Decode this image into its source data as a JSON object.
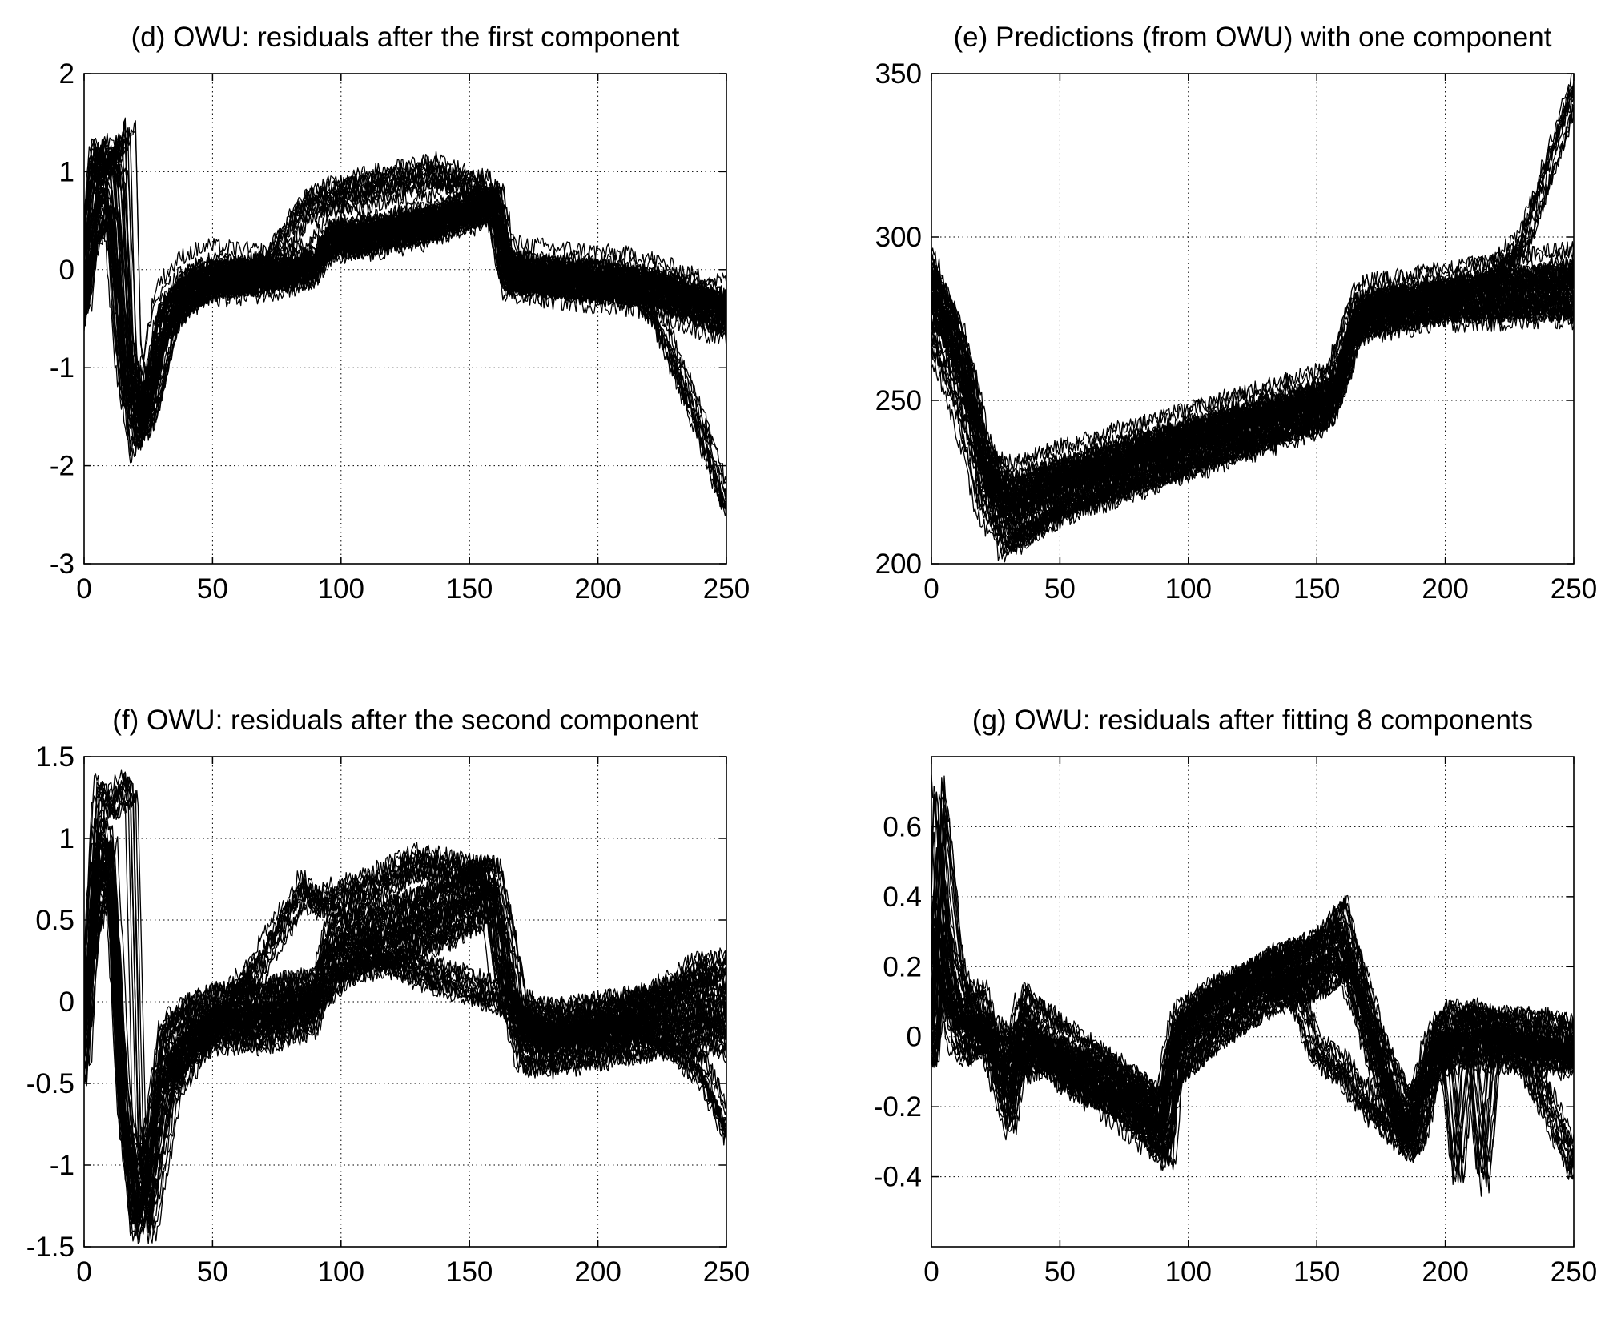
{
  "chart_data": [
    {
      "type": "line",
      "title": "(d) OWU: residuals after the first component",
      "xlabel": "",
      "ylabel": "",
      "xlim": [
        0,
        250
      ],
      "ylim": [
        -3,
        2
      ],
      "xticks": [
        0,
        50,
        100,
        150,
        200,
        250
      ],
      "yticks": [
        -3,
        -2,
        -1,
        0,
        1,
        2
      ],
      "xtick_labels": [
        "0",
        "50",
        "100",
        "150",
        "200",
        "250"
      ],
      "ytick_labels": [
        "-3",
        "-2",
        "-1",
        "0",
        "1",
        "2"
      ],
      "grid": true,
      "line_color": "#000000",
      "series_count": 60,
      "series": [
        {
          "x": [
            0,
            5,
            10,
            15,
            20,
            25,
            30,
            40,
            50,
            70,
            90,
            95,
            110,
            130,
            150,
            155,
            160,
            165,
            180,
            200,
            220,
            240,
            250
          ],
          "values": [
            -0.3,
            0.6,
            0.8,
            -0.9,
            -1.6,
            -1.2,
            -0.5,
            -0.2,
            -0.1,
            -0.05,
            0.05,
            0.3,
            0.35,
            0.45,
            0.6,
            0.65,
            0.65,
            0.0,
            -0.05,
            -0.1,
            -0.15,
            -0.3,
            -0.4
          ]
        },
        {
          "x": [
            0,
            5,
            10,
            15,
            20,
            25,
            30,
            40,
            50,
            70,
            90,
            95,
            110,
            130,
            150,
            155,
            160,
            165,
            180,
            200,
            220,
            240,
            250
          ],
          "values": [
            -0.5,
            0.9,
            1.1,
            -0.6,
            -1.8,
            -1.5,
            -0.8,
            -0.3,
            -0.2,
            -0.15,
            -0.05,
            0.2,
            0.25,
            0.35,
            0.5,
            0.55,
            0.7,
            -0.15,
            -0.2,
            -0.25,
            -0.3,
            -0.5,
            -0.6
          ]
        },
        {
          "x": [
            0,
            5,
            10,
            15,
            20,
            25,
            30,
            40,
            50,
            70,
            90,
            95,
            110,
            130,
            150,
            155,
            160,
            165,
            180,
            200,
            220,
            240,
            250
          ],
          "values": [
            -0.1,
            0.4,
            0.6,
            -1.1,
            -1.4,
            -1.0,
            -0.3,
            0.0,
            0.1,
            0.05,
            0.1,
            0.45,
            0.5,
            0.6,
            0.75,
            0.8,
            0.8,
            0.15,
            0.1,
            0.05,
            0.0,
            -0.2,
            -0.25
          ]
        },
        {
          "x": [
            0,
            4,
            8,
            14,
            18,
            25,
            35,
            50,
            70,
            85,
            90,
            110,
            130,
            135,
            155,
            160,
            165,
            180,
            200,
            215,
            225,
            240,
            250
          ],
          "values": [
            -0.2,
            1.0,
            1.2,
            1.0,
            -1.0,
            -1.5,
            -0.4,
            -0.1,
            0.0,
            0.6,
            0.7,
            0.85,
            0.95,
            1.0,
            0.8,
            0.7,
            -0.1,
            -0.1,
            -0.15,
            -0.2,
            -0.6,
            -1.6,
            -2.4
          ]
        },
        {
          "x": [
            0,
            5,
            10,
            15,
            18,
            20,
            25,
            35,
            50,
            70,
            90,
            95,
            110,
            130,
            150,
            160,
            165,
            180,
            200,
            220,
            240,
            250
          ],
          "values": [
            -0.4,
            1.2,
            1.0,
            1.2,
            1.4,
            -0.8,
            -1.7,
            -0.6,
            -0.15,
            -0.1,
            0.0,
            0.25,
            0.3,
            0.4,
            0.55,
            0.6,
            -0.05,
            -0.1,
            -0.2,
            -0.2,
            -0.35,
            -0.45
          ]
        }
      ]
    },
    {
      "type": "line",
      "title": "(e) Predictions (from OWU) with one component",
      "xlabel": "",
      "ylabel": "",
      "xlim": [
        0,
        250
      ],
      "ylim": [
        200,
        350
      ],
      "xticks": [
        0,
        50,
        100,
        150,
        200,
        250
      ],
      "yticks": [
        200,
        250,
        300,
        350
      ],
      "xtick_labels": [
        "0",
        "50",
        "100",
        "150",
        "200",
        "250"
      ],
      "ytick_labels": [
        "200",
        "250",
        "300",
        "350"
      ],
      "grid": true,
      "line_color": "#000000",
      "series_count": 60,
      "series": [
        {
          "x": [
            0,
            5,
            10,
            15,
            20,
            30,
            40,
            50,
            100,
            150,
            155,
            160,
            165,
            170,
            200,
            250
          ],
          "values": [
            285,
            275,
            265,
            250,
            230,
            218,
            222,
            225,
            238,
            250,
            252,
            262,
            275,
            278,
            282,
            286
          ]
        },
        {
          "x": [
            0,
            5,
            10,
            15,
            20,
            30,
            40,
            50,
            100,
            150,
            155,
            160,
            165,
            170,
            200,
            250
          ],
          "values": [
            278,
            268,
            258,
            245,
            225,
            212,
            216,
            220,
            233,
            246,
            248,
            258,
            272,
            275,
            279,
            282
          ]
        },
        {
          "x": [
            0,
            5,
            10,
            15,
            20,
            30,
            40,
            50,
            100,
            150,
            155,
            160,
            165,
            170,
            200,
            250
          ],
          "values": [
            292,
            282,
            272,
            258,
            236,
            226,
            229,
            231,
            243,
            254,
            256,
            266,
            279,
            282,
            286,
            292
          ]
        },
        {
          "x": [
            0,
            5,
            10,
            15,
            20,
            30,
            40,
            50,
            100,
            150,
            155,
            160,
            165,
            170,
            200,
            220,
            230,
            250
          ],
          "values": [
            288,
            279,
            270,
            255,
            232,
            220,
            224,
            227,
            240,
            251,
            253,
            263,
            277,
            280,
            284,
            290,
            300,
            347
          ]
        },
        {
          "x": [
            0,
            5,
            10,
            15,
            20,
            30,
            40,
            50,
            100,
            150,
            155,
            160,
            165,
            170,
            200,
            250
          ],
          "values": [
            270,
            262,
            252,
            238,
            220,
            206,
            210,
            216,
            230,
            243,
            245,
            255,
            270,
            273,
            277,
            278
          ]
        }
      ]
    },
    {
      "type": "line",
      "title": "(f) OWU: residuals after the second component",
      "xlabel": "",
      "ylabel": "",
      "xlim": [
        0,
        250
      ],
      "ylim": [
        -1.5,
        1.5
      ],
      "xticks": [
        0,
        50,
        100,
        150,
        200,
        250
      ],
      "yticks": [
        -1.5,
        -1,
        -0.5,
        0,
        0.5,
        1,
        1.5
      ],
      "xtick_labels": [
        "0",
        "50",
        "100",
        "150",
        "200",
        "250"
      ],
      "ytick_labels": [
        "-1.5",
        "-1",
        "-0.5",
        "0",
        "0.5",
        "1",
        "1.5"
      ],
      "grid": true,
      "line_color": "#000000",
      "series_count": 60,
      "series": [
        {
          "x": [
            0,
            5,
            10,
            15,
            20,
            25,
            30,
            40,
            50,
            70,
            90,
            95,
            110,
            130,
            150,
            155,
            160,
            165,
            170,
            180,
            200,
            220,
            240,
            250
          ],
          "values": [
            -0.2,
            0.7,
            0.9,
            -0.6,
            -1.2,
            -1.0,
            -0.4,
            -0.2,
            -0.1,
            -0.1,
            0.0,
            0.3,
            0.35,
            0.45,
            0.6,
            0.65,
            0.65,
            0.2,
            -0.2,
            -0.25,
            -0.2,
            -0.15,
            -0.1,
            -0.15
          ]
        },
        {
          "x": [
            0,
            5,
            10,
            15,
            20,
            25,
            30,
            40,
            50,
            70,
            90,
            95,
            110,
            130,
            150,
            155,
            160,
            165,
            170,
            180,
            200,
            220,
            240,
            250
          ],
          "values": [
            -0.4,
            1.0,
            1.0,
            -0.4,
            -1.4,
            -1.2,
            -0.6,
            -0.3,
            -0.2,
            -0.2,
            -0.1,
            0.2,
            0.25,
            0.35,
            0.5,
            0.55,
            0.6,
            0.0,
            -0.35,
            -0.35,
            -0.3,
            -0.25,
            -0.2,
            -0.25
          ]
        },
        {
          "x": [
            0,
            5,
            10,
            15,
            20,
            25,
            30,
            40,
            50,
            70,
            90,
            95,
            110,
            130,
            150,
            155,
            160,
            165,
            170,
            180,
            200,
            220,
            240,
            250
          ],
          "values": [
            0.0,
            0.5,
            0.7,
            -0.8,
            -1.0,
            -0.8,
            -0.2,
            -0.05,
            0.0,
            0.05,
            0.1,
            0.45,
            0.5,
            0.6,
            0.75,
            0.8,
            0.75,
            0.4,
            -0.05,
            -0.1,
            -0.05,
            0.0,
            0.05,
            0.0
          ]
        },
        {
          "x": [
            0,
            5,
            10,
            15,
            18,
            21,
            25,
            35,
            50,
            70,
            85,
            90,
            110,
            130,
            150,
            155,
            160,
            170,
            180,
            200,
            220,
            240,
            250
          ],
          "values": [
            -0.3,
            1.3,
            1.2,
            1.3,
            1.3,
            -0.8,
            -1.4,
            -0.5,
            -0.15,
            0.3,
            0.7,
            0.6,
            0.7,
            0.85,
            0.8,
            0.75,
            0.2,
            -0.1,
            -0.2,
            -0.15,
            0.0,
            0.2,
            0.2
          ]
        },
        {
          "x": [
            0,
            5,
            10,
            15,
            20,
            25,
            30,
            40,
            50,
            70,
            90,
            110,
            130,
            150,
            160,
            170,
            180,
            200,
            220,
            240,
            250
          ],
          "values": [
            -0.3,
            0.9,
            0.8,
            -0.6,
            -1.3,
            -1.1,
            -0.5,
            -0.25,
            -0.15,
            -0.1,
            0.0,
            0.3,
            0.2,
            0.1,
            0.05,
            -0.1,
            -0.2,
            -0.2,
            -0.15,
            -0.4,
            -0.75
          ]
        }
      ]
    },
    {
      "type": "line",
      "title": "(g) OWU: residuals after fitting 8 components",
      "xlabel": "",
      "ylabel": "",
      "xlim": [
        0,
        250
      ],
      "ylim": [
        -0.6,
        0.8
      ],
      "xticks": [
        0,
        50,
        100,
        150,
        200,
        250
      ],
      "yticks": [
        -0.4,
        -0.2,
        0,
        0.2,
        0.4,
        0.6
      ],
      "xtick_labels": [
        "0",
        "50",
        "100",
        "150",
        "200",
        "250"
      ],
      "ytick_labels": [
        "-0.4",
        "-0.2",
        "0",
        "0.2",
        "0.4",
        "0.6"
      ],
      "grid": true,
      "line_color": "#000000",
      "series_count": 60,
      "series": [
        {
          "x": [
            0,
            3,
            5,
            8,
            12,
            20,
            30,
            35,
            50,
            70,
            90,
            95,
            110,
            130,
            150,
            160,
            165,
            175,
            185,
            190,
            195,
            200,
            220,
            240,
            250
          ],
          "values": [
            0.0,
            0.4,
            0.2,
            0.1,
            0.05,
            0.05,
            -0.15,
            0.05,
            -0.05,
            -0.15,
            -0.25,
            -0.05,
            0.05,
            0.15,
            0.2,
            0.25,
            0.15,
            -0.1,
            -0.25,
            -0.2,
            -0.05,
            0.0,
            0.0,
            -0.02,
            -0.03
          ]
        },
        {
          "x": [
            0,
            3,
            5,
            8,
            12,
            20,
            30,
            35,
            50,
            70,
            90,
            95,
            110,
            130,
            150,
            160,
            165,
            175,
            185,
            190,
            195,
            200,
            220,
            240,
            250
          ],
          "values": [
            0.05,
            0.6,
            0.3,
            0.2,
            0.1,
            0.1,
            -0.2,
            0.1,
            0.0,
            -0.1,
            -0.2,
            0.0,
            0.1,
            0.2,
            0.25,
            0.35,
            0.2,
            -0.05,
            -0.2,
            -0.15,
            0.0,
            0.05,
            0.03,
            0.02,
            0.0
          ]
        },
        {
          "x": [
            0,
            3,
            5,
            8,
            12,
            20,
            30,
            35,
            50,
            70,
            90,
            95,
            110,
            130,
            150,
            160,
            165,
            175,
            185,
            190,
            195,
            200,
            220,
            240,
            250
          ],
          "values": [
            -0.05,
            0.2,
            0.1,
            0.0,
            -0.05,
            0.0,
            -0.25,
            0.0,
            -0.1,
            -0.2,
            -0.32,
            -0.1,
            0.0,
            0.1,
            0.15,
            0.2,
            0.1,
            -0.15,
            -0.32,
            -0.28,
            -0.1,
            -0.05,
            -0.05,
            -0.06,
            -0.07
          ]
        },
        {
          "x": [
            0,
            3,
            6,
            10,
            15,
            25,
            40,
            60,
            80,
            92,
            96,
            110,
            130,
            140,
            150,
            160,
            170,
            185,
            195,
            210,
            225,
            240,
            250
          ],
          "values": [
            0.0,
            0.7,
            0.5,
            0.2,
            0.05,
            0.0,
            -0.05,
            -0.15,
            -0.2,
            -0.35,
            0.05,
            0.12,
            0.18,
            0.15,
            -0.05,
            -0.1,
            -0.2,
            -0.3,
            -0.1,
            0.05,
            0.0,
            -0.2,
            -0.37
          ]
        },
        {
          "x": [
            0,
            3,
            5,
            10,
            20,
            30,
            50,
            70,
            90,
            95,
            110,
            130,
            150,
            160,
            170,
            185,
            195,
            200,
            205,
            210,
            215,
            220,
            250
          ],
          "values": [
            0.0,
            0.3,
            0.15,
            0.05,
            0.0,
            -0.1,
            -0.05,
            -0.1,
            -0.2,
            0.0,
            0.1,
            0.18,
            0.25,
            0.3,
            0.1,
            -0.3,
            -0.05,
            0.0,
            -0.4,
            0.0,
            -0.4,
            0.0,
            -0.05
          ]
        }
      ]
    }
  ]
}
